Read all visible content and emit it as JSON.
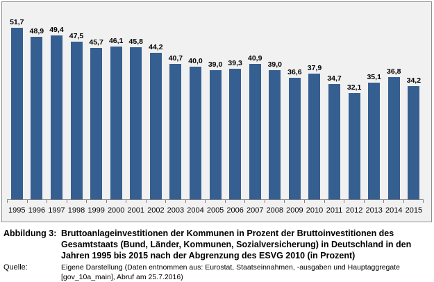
{
  "chart_data": {
    "type": "bar",
    "categories": [
      "1995",
      "1996",
      "1997",
      "1998",
      "1999",
      "2000",
      "2001",
      "2002",
      "2003",
      "2004",
      "2005",
      "2006",
      "2007",
      "2008",
      "2009",
      "2010",
      "2011",
      "2012",
      "2013",
      "2014",
      "2015"
    ],
    "values": [
      51.7,
      48.9,
      49.4,
      47.5,
      45.7,
      46.1,
      45.8,
      44.2,
      40.7,
      40.0,
      39.0,
      39.3,
      40.9,
      39.0,
      36.6,
      37.9,
      34.7,
      32.1,
      35.1,
      36.8,
      34.2
    ],
    "value_labels": [
      "51,7",
      "48,9",
      "49,4",
      "47,5",
      "45,7",
      "46,1",
      "45,8",
      "44,2",
      "40,7",
      "40,0",
      "39,0",
      "39,3",
      "40,9",
      "39,0",
      "36,6",
      "37,9",
      "34,7",
      "32,1",
      "35,1",
      "36,8",
      "34,2"
    ],
    "title": "Bruttoanlageinvestitionen der Kommunen in Prozent der Bruttoinvestitionen des Gesamtstaats (Bund, Länder, Kommunen, Sozialversicherung) in Deutschland in den Jahren 1995 bis 2015 nach der Abgrenzung des ESVG 2010 (in Prozent)",
    "xlabel": "",
    "ylabel": "",
    "ylim": [
      0,
      55
    ],
    "grid": false,
    "legend": "none",
    "data_labels": true,
    "bar_color": "#365F91",
    "plot_background": "#f1f1f1",
    "axis_color": "#808080"
  },
  "caption": {
    "label": "Abbildung 3:",
    "title": "Bruttoanlageinvestitionen der Kommunen in Prozent der Bruttoinvestitionen des Gesamtstaats (Bund, Länder, Kommunen, Sozialversicherung) in Deutschland in den Jahren 1995 bis 2015 nach der Abgrenzung des ESVG 2010 (in Prozent)",
    "source_label": "Quelle:",
    "source_text": "Eigene Darstellung (Daten entnommen aus: Eurostat, Staatseinnahmen, -ausgaben und Hauptaggregate [gov_10a_main], Abruf am 25.7.2016)"
  }
}
